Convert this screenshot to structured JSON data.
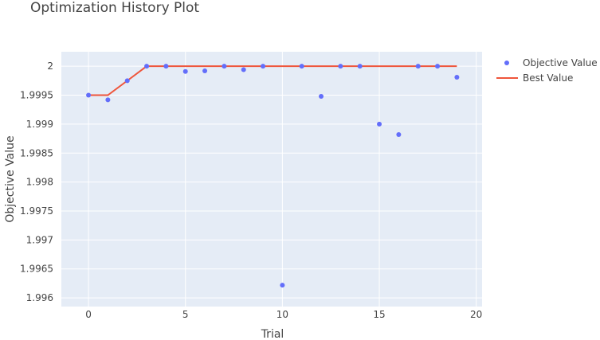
{
  "chart_data": {
    "type": "scatter",
    "title": "Optimization History Plot",
    "xlabel": "Trial",
    "ylabel": "Objective Value",
    "xlim": [
      -1.4,
      20.3
    ],
    "ylim": [
      1.99585,
      2.00025
    ],
    "x_ticks": [
      0,
      5,
      10,
      15,
      20
    ],
    "y_ticks": [
      1.996,
      1.9965,
      1.997,
      1.9975,
      1.998,
      1.9985,
      1.999,
      1.9995,
      2
    ],
    "y_tick_labels": [
      "1.996",
      "1.9965",
      "1.997",
      "1.9975",
      "1.998",
      "1.9985",
      "1.999",
      "1.9995",
      "2"
    ],
    "grid": true,
    "legend_position": "top-right",
    "series": [
      {
        "name": "Objective Value",
        "mode": "markers",
        "color": "#636efa",
        "x": [
          0,
          1,
          2,
          3,
          4,
          5,
          6,
          7,
          8,
          9,
          10,
          11,
          12,
          13,
          14,
          15,
          16,
          17,
          18,
          19
        ],
        "y": [
          1.9995,
          1.99942,
          1.99975,
          2.0,
          2.0,
          1.99991,
          1.99992,
          2.0,
          1.99994,
          2.0,
          1.99622,
          2.0,
          1.99948,
          2.0,
          2.0,
          1.999,
          1.99882,
          2.0,
          2.0,
          1.99981
        ]
      },
      {
        "name": "Best Value",
        "mode": "lines",
        "color": "#ef553b",
        "x": [
          0,
          1,
          2,
          3,
          4,
          5,
          6,
          7,
          8,
          9,
          10,
          11,
          12,
          13,
          14,
          15,
          16,
          17,
          18,
          19
        ],
        "y": [
          1.9995,
          1.9995,
          1.99975,
          2.0,
          2.0,
          2.0,
          2.0,
          2.0,
          2.0,
          2.0,
          2.0,
          2.0,
          2.0,
          2.0,
          2.0,
          2.0,
          2.0,
          2.0,
          2.0,
          2.0
        ]
      }
    ]
  },
  "colors": {
    "plot_background": "#e5ecf6",
    "grid": "#ffffff",
    "text": "#444444"
  }
}
